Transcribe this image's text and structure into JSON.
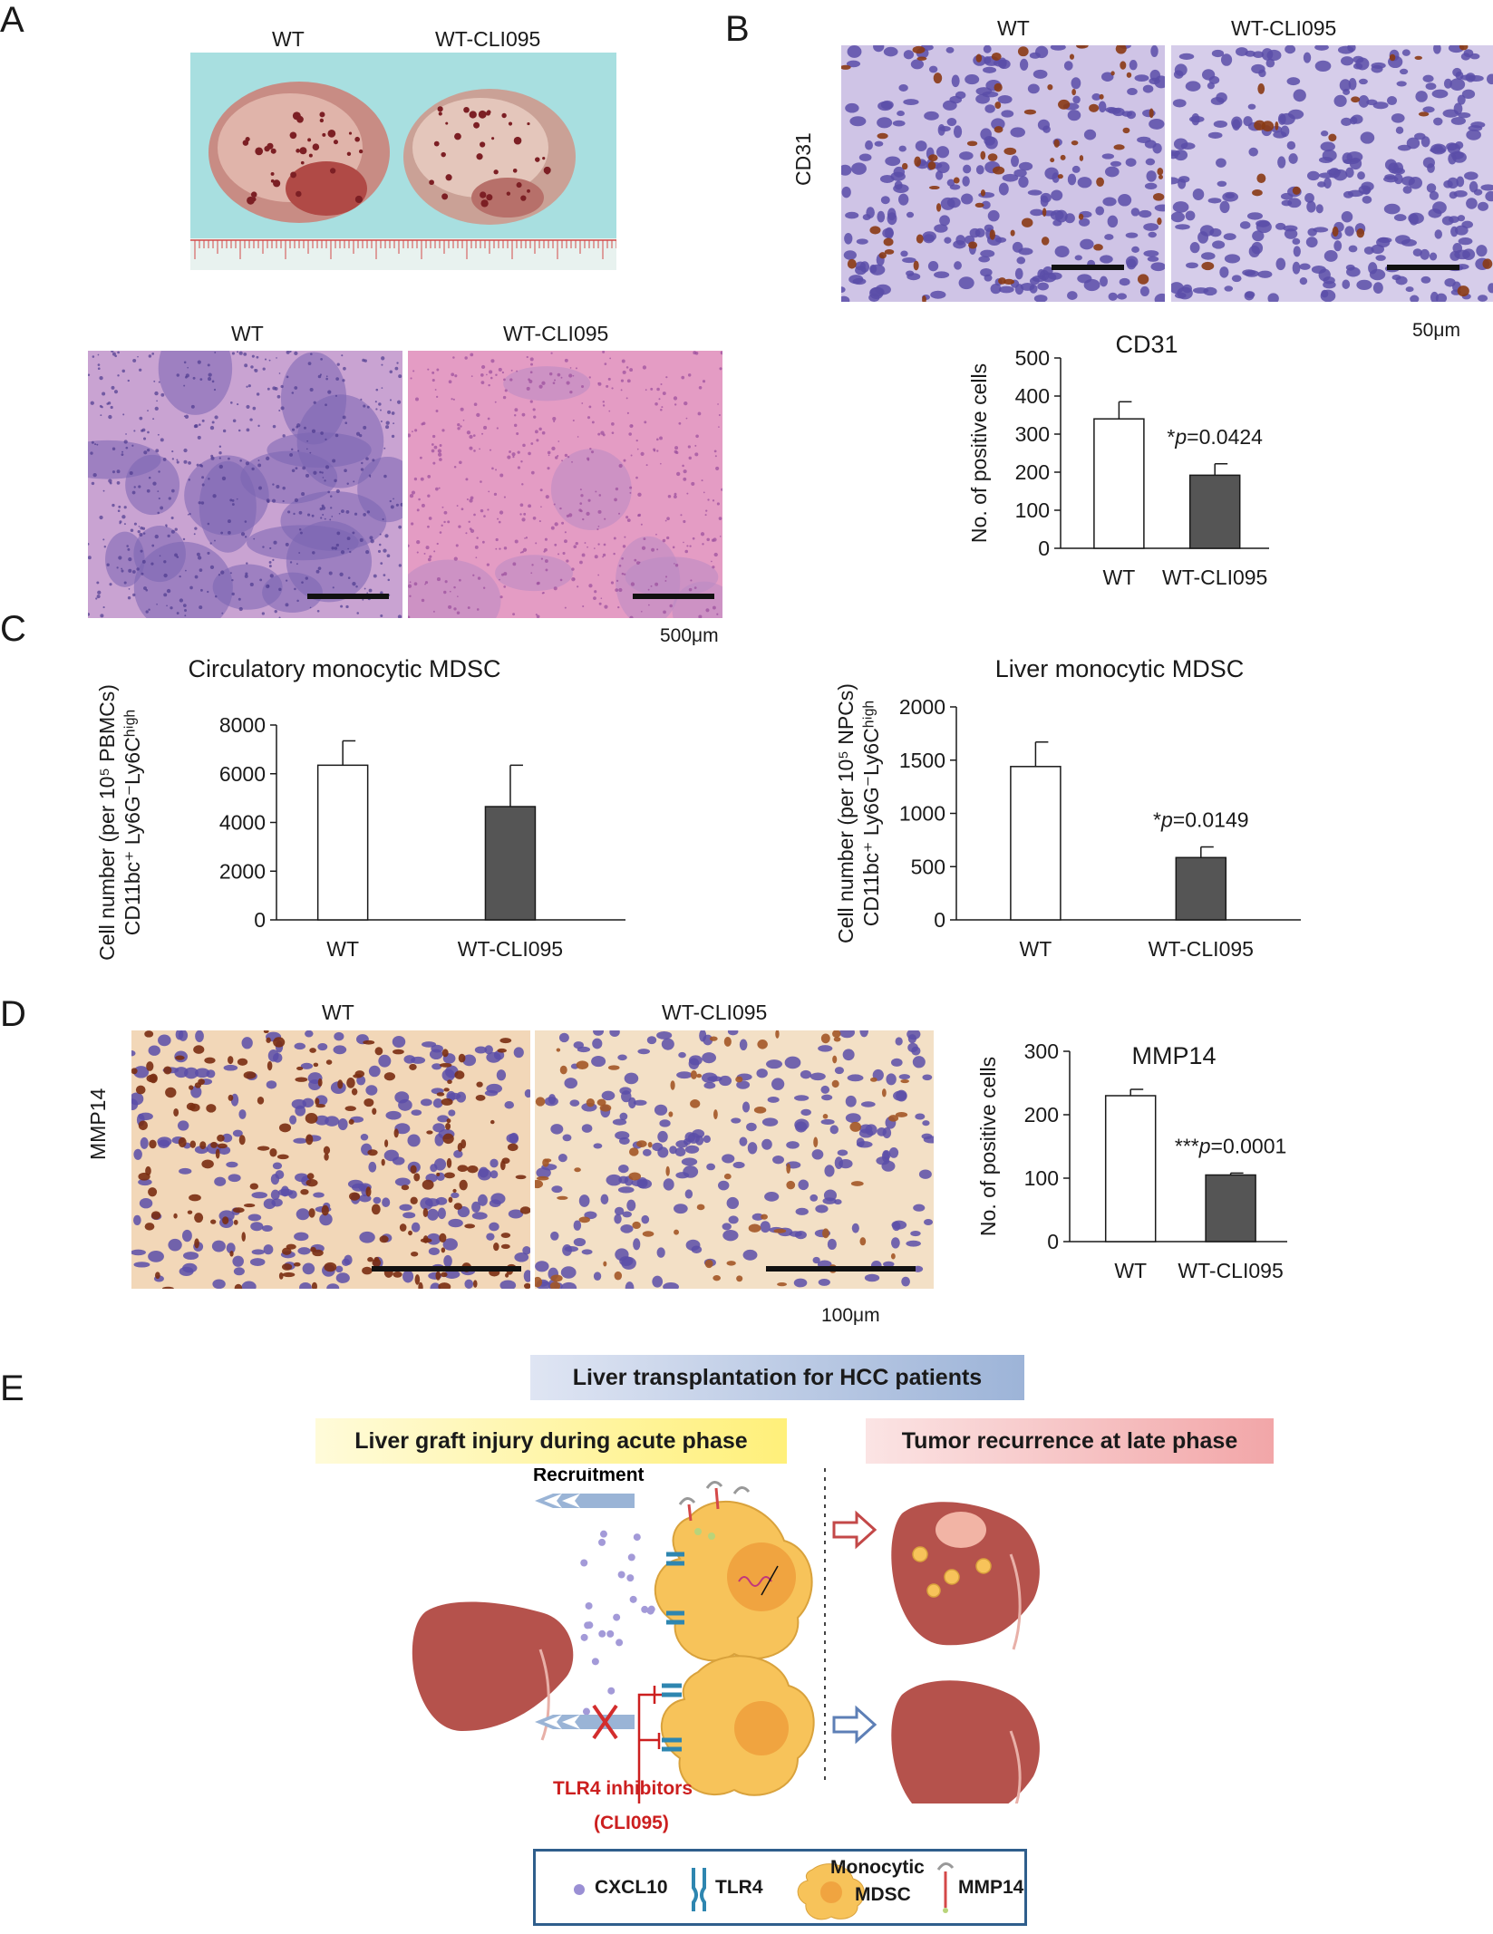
{
  "panels": {
    "a": "A",
    "b": "B",
    "c": "C",
    "d": "D",
    "e": "E"
  },
  "panel_a": {
    "wt": "WT",
    "treated": "WT-CLI095",
    "wt2": "WT",
    "treated2": "WT-CLI095",
    "scale": "500μm"
  },
  "panel_b": {
    "wt": "WT",
    "treated": "WT-CLI095",
    "row": "CD31",
    "scale": "50μm"
  },
  "panel_d": {
    "wt": "WT",
    "treated": "WT-CLI095",
    "row": "MMP14",
    "scale": "100μm"
  },
  "chart_data": [
    {
      "id": "cd31",
      "type": "bar",
      "title": "CD31",
      "ylabel": "No. of positive cells",
      "categories": [
        "WT",
        "WT-CLI095"
      ],
      "values": [
        340,
        192
      ],
      "errors": [
        45,
        30
      ],
      "yticks": [
        0,
        100,
        200,
        300,
        400,
        500
      ],
      "ylim": [
        0,
        500
      ],
      "annotation": {
        "stars": "*",
        "p": "p",
        "value": "=0.0424"
      }
    },
    {
      "id": "circ",
      "type": "bar",
      "title": "Circulatory monocytic MDSC",
      "ylabel_line1": "Cell number (per 10⁵ PBMCs)",
      "ylabel_line2": "CD11bc⁺ Ly6G⁻Ly6Cʰⁱᵍʰ",
      "categories": [
        "WT",
        "WT-CLI095"
      ],
      "values": [
        6350,
        4650
      ],
      "errors": [
        1000,
        1700
      ],
      "yticks": [
        0,
        2000,
        4000,
        6000,
        8000
      ],
      "ylim": [
        0,
        8000
      ]
    },
    {
      "id": "liver",
      "type": "bar",
      "title": "Liver monocytic MDSC",
      "ylabel_line1": "Cell number (per 10⁵ NPCs)",
      "ylabel_line2": "CD11bc⁺ Ly6G⁻Ly6Cʰⁱᵍʰ",
      "categories": [
        "WT",
        "WT-CLI095"
      ],
      "values": [
        1440,
        585
      ],
      "errors": [
        230,
        100
      ],
      "yticks": [
        0,
        500,
        1000,
        1500,
        2000
      ],
      "ylim": [
        0,
        2000
      ],
      "annotation": {
        "stars": "*",
        "p": "p",
        "value": "=0.0149"
      }
    },
    {
      "id": "mmp14",
      "type": "bar",
      "title": "MMP14",
      "ylabel": "No. of positive cells",
      "categories": [
        "WT",
        "WT-CLI095"
      ],
      "values": [
        230,
        105
      ],
      "errors": [
        10,
        3
      ],
      "yticks": [
        0,
        100,
        200,
        300
      ],
      "ylim": [
        0,
        300
      ],
      "annotation": {
        "stars": "***",
        "p": "p",
        "value": "=0.0001"
      }
    }
  ],
  "panel_e": {
    "top_title": "Liver transplantation for HCC patients",
    "left_title": "Liver graft injury during acute phase",
    "right_title": "Tumor recurrence at late phase",
    "recruitment": "Recruitment",
    "inhibitor_line1": "TLR4 inhibitors",
    "inhibitor_line2": "(CLI095)",
    "legend": {
      "cxcl10": "CXCL10",
      "tlr4": "TLR4",
      "mdsc_line1": "Monocytic",
      "mdsc_line2": "MDSC",
      "mmp14": "MMP14"
    },
    "colors": {
      "cxcl10": "#9a8fd4",
      "tlr4": "#2e86b0",
      "mdsc": "#f7c35a",
      "liver": "#b5524c",
      "inhibitor": "#cc1f1f"
    }
  }
}
